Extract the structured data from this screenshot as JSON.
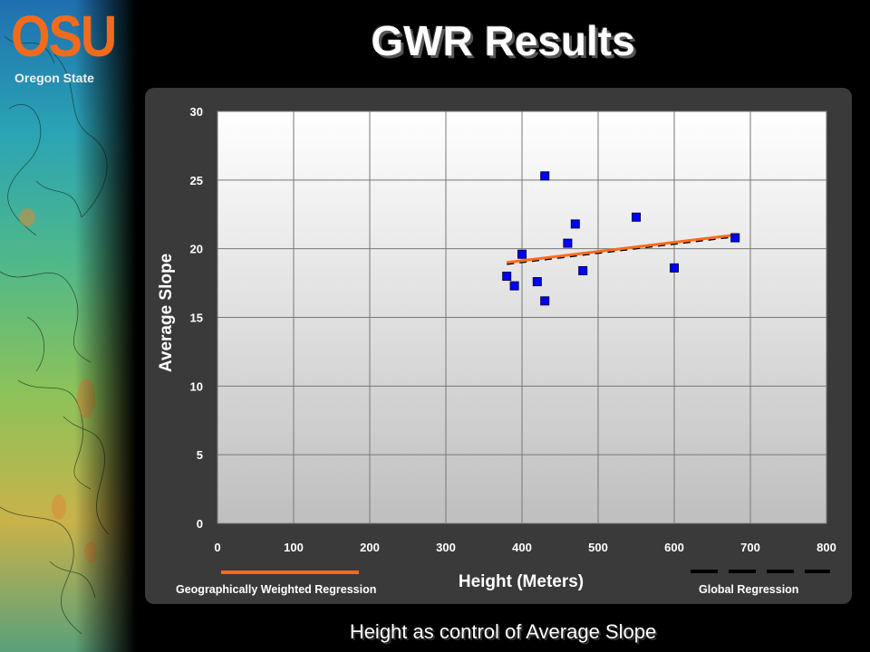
{
  "slide": {
    "title": "GWR Results",
    "caption": "Height as control of Average Slope"
  },
  "logo": {
    "text": "OSU",
    "subtitle": "Oregon State"
  },
  "colors": {
    "background": "#000000",
    "panel": "#3a3a3a",
    "marker": "#0000ff",
    "gwr_line": "#ff6a1a",
    "global_line": "#000000",
    "logo": "#f26b1d"
  },
  "chart_data": {
    "type": "scatter",
    "title": "",
    "xlabel": "Height (Meters)",
    "ylabel": "Average Slope",
    "xlim": [
      0,
      800
    ],
    "ylim": [
      0,
      30
    ],
    "xticks": [
      0,
      100,
      200,
      300,
      400,
      500,
      600,
      700,
      800
    ],
    "yticks": [
      0,
      5,
      10,
      15,
      20,
      25,
      30
    ],
    "grid": true,
    "points": [
      {
        "x": 380,
        "y": 18.0
      },
      {
        "x": 390,
        "y": 17.3
      },
      {
        "x": 400,
        "y": 19.6
      },
      {
        "x": 420,
        "y": 17.6
      },
      {
        "x": 430,
        "y": 25.3
      },
      {
        "x": 430,
        "y": 16.2
      },
      {
        "x": 460,
        "y": 20.4
      },
      {
        "x": 470,
        "y": 21.8
      },
      {
        "x": 480,
        "y": 18.4
      },
      {
        "x": 550,
        "y": 22.3
      },
      {
        "x": 600,
        "y": 18.6
      },
      {
        "x": 680,
        "y": 20.8
      }
    ],
    "lines": [
      {
        "name": "Geographically Weighted Regression",
        "style": "solid",
        "x": [
          380,
          680
        ],
        "y": [
          19.0,
          21.0
        ]
      },
      {
        "name": "Global Regression",
        "style": "dashed",
        "x": [
          380,
          680
        ],
        "y": [
          18.9,
          20.9
        ]
      }
    ],
    "legend": {
      "left": "Geographically Weighted Regression",
      "right": "Global Regression"
    }
  }
}
